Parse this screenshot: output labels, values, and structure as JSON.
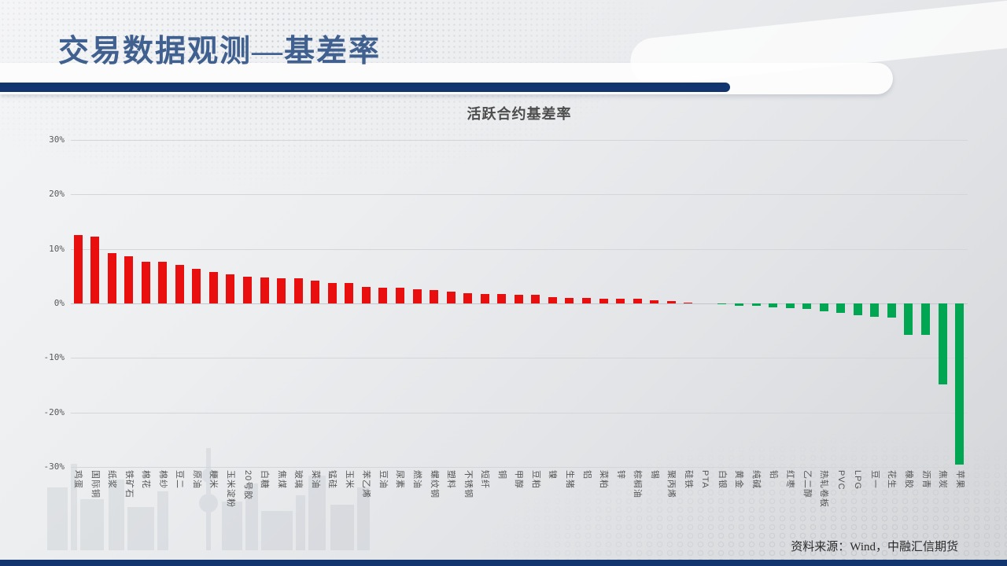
{
  "slide": {
    "title": "交易数据观测—基差率",
    "source_note": "资料来源：Wind，中融汇信期货"
  },
  "colors": {
    "accent_navy": "#12346f",
    "title_blue": "#40608f",
    "positive_bar": "#e90f0f",
    "negative_bar": "#00a651"
  },
  "chart_data": {
    "type": "bar",
    "title": "活跃合约基差率",
    "xlabel": "",
    "ylabel": "",
    "unit": "%",
    "ylim": [
      -30,
      30
    ],
    "yticks": [
      30,
      20,
      10,
      0,
      -10,
      -20,
      -30
    ],
    "ytick_labels": [
      "30%",
      "20%",
      "10%",
      "0%",
      "-10%",
      "-20%",
      "-30%"
    ],
    "grid": true,
    "legend": "none",
    "positive_color": "#e90f0f",
    "negative_color": "#00a651",
    "categories": [
      "鸡蛋",
      "国际铜",
      "纸浆",
      "铁矿石",
      "棉花",
      "棉纱",
      "豆二",
      "原油",
      "粳米",
      "玉米淀粉",
      "20号胶",
      "白糖",
      "焦煤",
      "玻璃",
      "菜油",
      "锰硅",
      "玉米",
      "苯乙烯",
      "豆油",
      "尿素",
      "燃油",
      "螺纹钢",
      "塑料",
      "不锈钢",
      "短纤",
      "铜",
      "甲醇",
      "豆粕",
      "镍",
      "生猪",
      "铝",
      "菜粕",
      "锌",
      "棕榈油",
      "锡",
      "聚丙烯",
      "硅铁",
      "PTA",
      "白银",
      "黄金",
      "纯碱",
      "铅",
      "红枣",
      "乙二醇",
      "热轧卷板",
      "PVC",
      "LPG",
      "豆一",
      "花生",
      "橡胶",
      "沥青",
      "焦炭",
      "苹果"
    ],
    "values": [
      12.5,
      12.3,
      9.3,
      8.7,
      7.7,
      7.6,
      7.1,
      6.3,
      5.7,
      5.4,
      4.9,
      4.8,
      4.6,
      4.6,
      4.2,
      3.8,
      3.7,
      3.0,
      2.9,
      2.9,
      2.6,
      2.5,
      2.1,
      1.9,
      1.8,
      1.8,
      1.6,
      1.6,
      1.1,
      1.0,
      1.0,
      0.9,
      0.8,
      0.8,
      0.6,
      0.5,
      0.1,
      0.0,
      -0.2,
      -0.4,
      -0.5,
      -0.7,
      -0.9,
      -1.0,
      -1.4,
      -1.8,
      -2.2,
      -2.4,
      -2.6,
      -5.7,
      -5.8,
      -14.8,
      -29.5
    ]
  }
}
